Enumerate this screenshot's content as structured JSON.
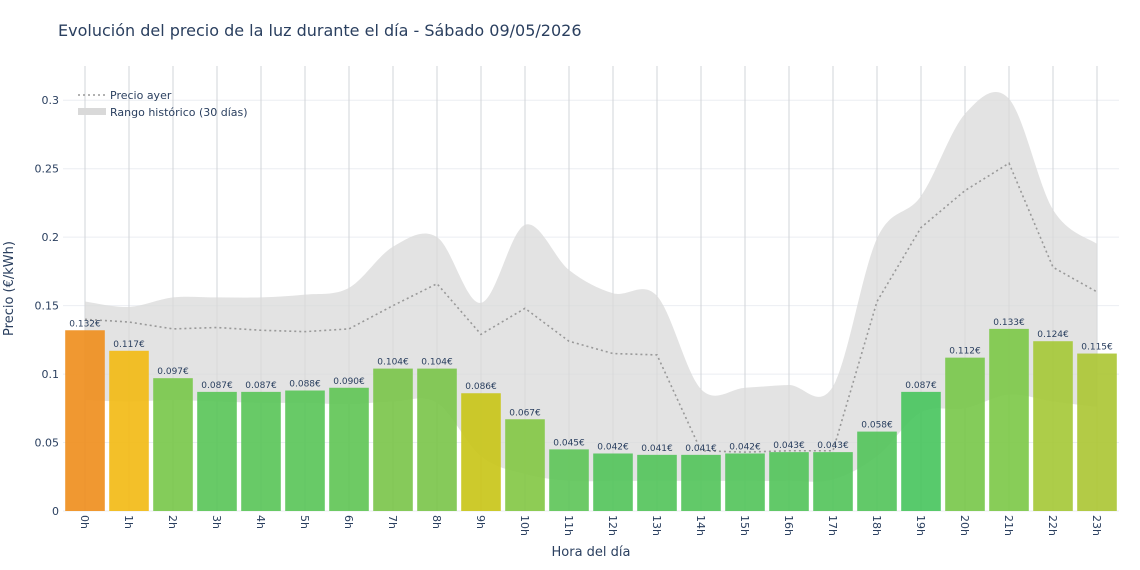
{
  "chart_data": {
    "type": "bar",
    "title": "Evolución del precio de la luz durante el día - Sábado 09/05/2026",
    "xlabel": "Hora del día",
    "ylabel": "Precio (€/kWh)",
    "ylim": [
      0,
      0.325
    ],
    "yticks": [
      "0",
      "0.05",
      "0.1",
      "0.15",
      "0.2",
      "0.25",
      "0.3"
    ],
    "ytick_values": [
      0,
      0.05,
      0.1,
      0.15,
      0.2,
      0.25,
      0.3
    ],
    "grid": true,
    "legend_position": "top-left",
    "categories": [
      "0h",
      "1h",
      "2h",
      "3h",
      "4h",
      "5h",
      "6h",
      "7h",
      "8h",
      "9h",
      "10h",
      "11h",
      "12h",
      "13h",
      "14h",
      "15h",
      "16h",
      "17h",
      "18h",
      "19h",
      "20h",
      "21h",
      "22h",
      "23h"
    ],
    "values": [
      0.132,
      0.117,
      0.097,
      0.087,
      0.087,
      0.088,
      0.09,
      0.104,
      0.104,
      0.086,
      0.067,
      0.045,
      0.042,
      0.041,
      0.041,
      0.042,
      0.043,
      0.043,
      0.058,
      0.087,
      0.112,
      0.133,
      0.124,
      0.115
    ],
    "value_labels": [
      "0.132€",
      "0.117€",
      "0.097€",
      "0.087€",
      "0.087€",
      "0.088€",
      "0.090€",
      "0.104€",
      "0.104€",
      "0.086€",
      "0.067€",
      "0.045€",
      "0.042€",
      "0.041€",
      "0.041€",
      "0.042€",
      "0.043€",
      "0.043€",
      "0.058€",
      "0.087€",
      "0.112€",
      "0.133€",
      "0.124€",
      "0.115€"
    ],
    "bar_colors": [
      "#ef8f20",
      "#f2bb17",
      "#79c84c",
      "#5bc65a",
      "#5bc65a",
      "#5bc65a",
      "#62c657",
      "#7cc64c",
      "#7cc64c",
      "#c9c51a",
      "#84c846",
      "#5fc55a",
      "#55c45c",
      "#55c45c",
      "#55c45c",
      "#55c45c",
      "#55c45c",
      "#55c45c",
      "#55c45c",
      "#4ac65f",
      "#79c84c",
      "#7ec94a",
      "#a6c93a",
      "#acc736"
    ],
    "series": [
      {
        "name": "Precio ayer",
        "style": "dotted-line",
        "color": "#999999",
        "values": [
          0.14,
          0.138,
          0.133,
          0.134,
          0.132,
          0.131,
          0.133,
          0.15,
          0.166,
          0.129,
          0.148,
          0.124,
          0.115,
          0.114,
          0.044,
          0.043,
          0.044,
          0.044,
          0.153,
          0.207,
          0.234,
          0.254,
          0.178,
          0.16
        ]
      },
      {
        "name": "Rango histórico (30 días)",
        "style": "band",
        "color": "#d9d9d9",
        "upper": [
          0.153,
          0.149,
          0.156,
          0.156,
          0.156,
          0.158,
          0.163,
          0.193,
          0.2,
          0.152,
          0.209,
          0.176,
          0.159,
          0.157,
          0.089,
          0.09,
          0.092,
          0.091,
          0.199,
          0.23,
          0.29,
          0.301,
          0.22,
          0.195
        ],
        "lower": [
          0.081,
          0.08,
          0.081,
          0.08,
          0.079,
          0.079,
          0.078,
          0.08,
          0.079,
          0.04,
          0.027,
          0.022,
          0.022,
          0.022,
          0.022,
          0.022,
          0.022,
          0.023,
          0.04,
          0.072,
          0.075,
          0.085,
          0.08,
          0.076
        ]
      }
    ]
  }
}
